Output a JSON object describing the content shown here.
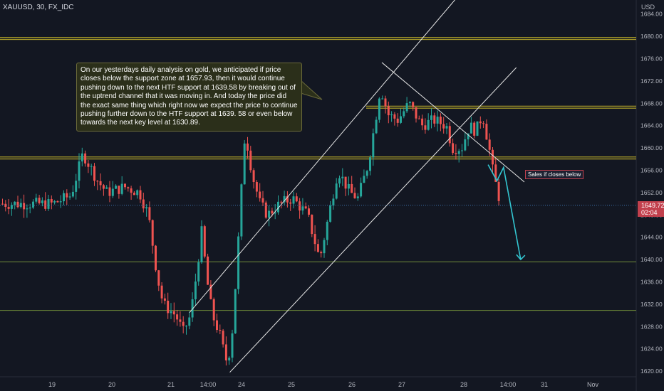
{
  "symbol": "XAUUSD, 30, FX_IDC",
  "currency": "USD",
  "annotation": "On our yesterdays daily analysis on gold, we anticipated if price closes below the support zone at 1657.93, then it would continue pushing down to the next HTF support at 1639.58 by breaking out of the uptrend channel that it was moving in. And today the price did the exact same thing which right now we expect the price to continue pushing further down to the HTF support at 1639. 58 or even below towards the next key level at 1630.89.",
  "sales_label": "Sales if closes below",
  "last_price": {
    "price": "1649.72",
    "countdown": "02:04"
  },
  "colors": {
    "background": "#131722",
    "up": "#26a69a",
    "down": "#ef5350",
    "zone": "#b8a82a",
    "forecast": "#33c6d1"
  },
  "chart_data": {
    "type": "candlestick",
    "x_ticks": [
      "19",
      "20",
      "21",
      "14:00",
      "24",
      "25",
      "26",
      "27",
      "28",
      "14:00",
      "31",
      "Nov"
    ],
    "y_ticks": [
      1684,
      1680,
      1676,
      1672,
      1668,
      1664,
      1660,
      1656,
      1652,
      1648,
      1644,
      1640,
      1636,
      1632,
      1628,
      1624,
      1620
    ],
    "y_tick_labels": [
      "1684.00",
      "1680.00",
      "1676.00",
      "1672.00",
      "1668.00",
      "1664.00",
      "1660.00",
      "1656.00",
      "1652.00",
      "1648.00",
      "1644.00",
      "1640.00",
      "1636.00",
      "1632.00",
      "1628.00",
      "1624.00",
      "1620.00"
    ],
    "ylim": [
      1619,
      1686.5
    ],
    "horizontal_levels": [
      {
        "price": 1679.6,
        "kind": "zone"
      },
      {
        "price": 1667.3,
        "kind": "zone"
      },
      {
        "price": 1658.2,
        "kind": "zone"
      },
      {
        "price": 1639.6,
        "kind": "level"
      },
      {
        "price": 1630.9,
        "kind": "level"
      }
    ],
    "price_path": [
      [
        0,
        1650
      ],
      [
        0.3,
        1651.5
      ],
      [
        0.5,
        1659
      ],
      [
        0.75,
        1654
      ],
      [
        0.9,
        1652
      ],
      [
        1.2,
        1653
      ],
      [
        1.45,
        1652
      ],
      [
        1.6,
        1648
      ],
      [
        1.75,
        1637
      ],
      [
        1.85,
        1632
      ],
      [
        2.1,
        1630
      ],
      [
        2.3,
        1627
      ],
      [
        2.5,
        1630
      ],
      [
        2.65,
        1637
      ],
      [
        2.8,
        1645
      ],
      [
        2.95,
        1636
      ],
      [
        3.1,
        1630
      ],
      [
        3.3,
        1627
      ],
      [
        3.5,
        1622
      ],
      [
        3.65,
        1624
      ],
      [
        3.75,
        1632
      ],
      [
        3.9,
        1646
      ],
      [
        4.0,
        1656
      ],
      [
        4.05,
        1663
      ],
      [
        4.2,
        1655
      ],
      [
        4.35,
        1650
      ],
      [
        4.5,
        1648
      ],
      [
        4.75,
        1650
      ],
      [
        5.0,
        1651
      ],
      [
        5.25,
        1648
      ],
      [
        5.45,
        1640
      ],
      [
        5.6,
        1648
      ],
      [
        5.75,
        1656
      ],
      [
        5.95,
        1652
      ],
      [
        6.1,
        1651
      ],
      [
        6.3,
        1657
      ],
      [
        6.45,
        1665
      ],
      [
        6.55,
        1671
      ],
      [
        6.7,
        1666
      ],
      [
        6.9,
        1665
      ],
      [
        7.1,
        1668
      ],
      [
        7.3,
        1664
      ],
      [
        7.5,
        1665
      ],
      [
        7.7,
        1664
      ],
      [
        7.8,
        1660
      ],
      [
        7.95,
        1660
      ],
      [
        8.1,
        1664
      ],
      [
        8.25,
        1663
      ],
      [
        8.4,
        1666
      ],
      [
        8.55,
        1660
      ],
      [
        8.65,
        1655
      ],
      [
        8.75,
        1652
      ],
      [
        8.8,
        1650
      ]
    ],
    "trendlines": [
      {
        "from": [
          2.5,
          1630.5
        ],
        "to": [
          8.0,
          1688.4
        ]
      },
      {
        "from": [
          3.65,
          1619.8
        ],
        "to": [
          9.23,
          1674.4
        ]
      },
      {
        "from": [
          6.6,
          1675.3
        ],
        "to": [
          9.45,
          1653.9
        ]
      }
    ],
    "forecast_path": [
      [
        8.55,
        1657
      ],
      [
        8.75,
        1654.1
      ],
      [
        8.9,
        1656.5
      ],
      [
        9.35,
        1640
      ]
    ]
  }
}
